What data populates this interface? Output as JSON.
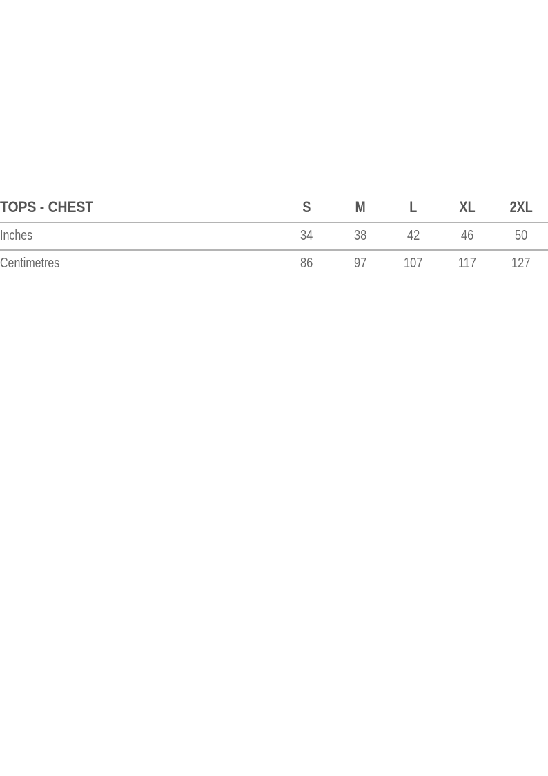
{
  "table": {
    "title": "TOPS - CHEST",
    "sizes": [
      "S",
      "M",
      "L",
      "XL",
      "2XL"
    ],
    "rows": [
      {
        "label": "Inches",
        "values": [
          "34",
          "38",
          "42",
          "46",
          "50"
        ]
      },
      {
        "label": "Centimetres",
        "values": [
          "86",
          "97",
          "107",
          "117",
          "127"
        ]
      }
    ]
  }
}
